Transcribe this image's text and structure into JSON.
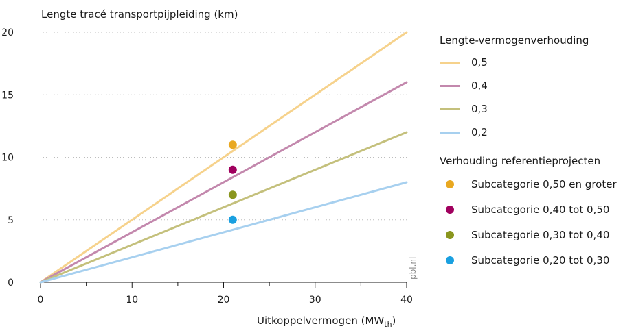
{
  "chart_data": {
    "type": "line",
    "title": "Lengte tracé transportpijpleiding (km)",
    "xlabel": "Uitkoppelvermogen (MW",
    "xlabel_sub": "th",
    "xlabel_close": ")",
    "xlim": [
      0,
      40
    ],
    "ylim": [
      0,
      20
    ],
    "x_ticks": [
      0,
      10,
      20,
      30,
      40
    ],
    "y_ticks": [
      0,
      5,
      10,
      15,
      20
    ],
    "x_tick_labels": [
      "0",
      "10",
      "20",
      "30",
      "40"
    ],
    "y_tick_labels": [
      "0",
      "5",
      "10",
      "15",
      "20"
    ],
    "grid": "horizontal",
    "legend_title": "Lengte-vermogenverhouding",
    "series": [
      {
        "name": "0,5",
        "color": "#f6d28c",
        "x": [
          0,
          40
        ],
        "y": [
          0,
          20
        ]
      },
      {
        "name": "0,4",
        "color": "#c388ad",
        "x": [
          0,
          40
        ],
        "y": [
          0,
          16
        ]
      },
      {
        "name": "0,3",
        "color": "#c4c07c",
        "x": [
          0,
          40
        ],
        "y": [
          0,
          12
        ]
      },
      {
        "name": "0,2",
        "color": "#a7d0ef",
        "x": [
          0,
          40
        ],
        "y": [
          0,
          8
        ]
      }
    ],
    "points_legend_title": "Verhouding referentieprojecten",
    "points": [
      {
        "name": "Subcategorie 0,50 en groter",
        "color": "#e9a820",
        "x": 21,
        "y": 11
      },
      {
        "name": "Subcategorie 0,40 tot 0,50",
        "color": "#a0005e",
        "x": 21,
        "y": 9
      },
      {
        "name": "Subcategorie 0,30 tot 0,40",
        "color": "#8a961e",
        "x": 21,
        "y": 7
      },
      {
        "name": "Subcategorie 0,20 tot 0,30",
        "color": "#1aa0e0",
        "x": 21,
        "y": 5
      }
    ],
    "watermark": "pbl.nl"
  }
}
